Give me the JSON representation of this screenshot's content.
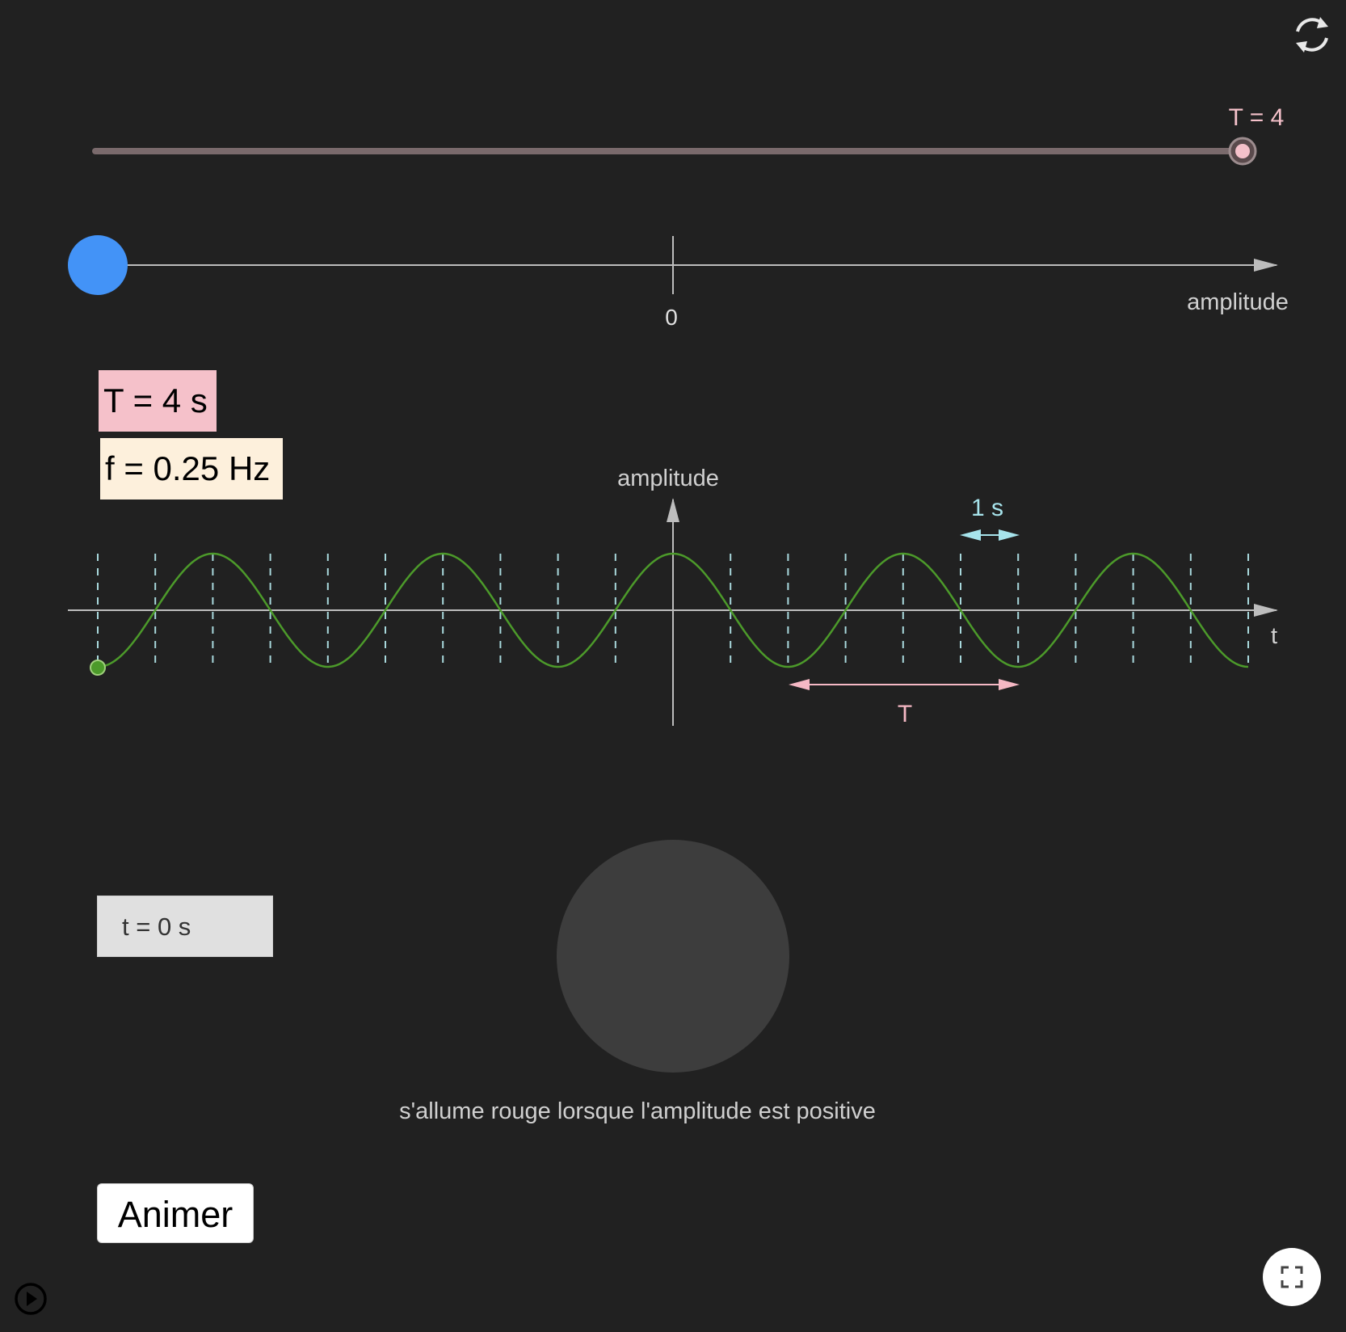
{
  "period_slider": {
    "label": "T = 4",
    "value": 4,
    "position_fraction": 1.0
  },
  "amplitude_axis": {
    "zero_label": "0",
    "axis_label": "amplitude"
  },
  "info": {
    "period_text": "T = 4 s",
    "frequency_text": "f = 0.25 Hz"
  },
  "graph": {
    "y_axis_label": "amplitude",
    "x_axis_label": "t",
    "one_second_label": "1 s",
    "period_label": "T"
  },
  "time_display": "t = 0 s",
  "lamp_caption": "s'allume rouge lorsque l'amplitude est positive",
  "animate_button": "Animer",
  "colors": {
    "background": "#212121",
    "slider_track": "#7a6a6c",
    "slider_label": "#f5c1ca",
    "blue_point": "#4393f7",
    "curve": "#4c9a2a",
    "dashed": "#a8d8dc",
    "period_arrow": "#f5b8c4",
    "one_second_arrow": "#a7e4ec",
    "lamp_off": "#3d3d3d"
  },
  "icons": {
    "reset": "reset-icon",
    "fullscreen": "fullscreen-icon",
    "play": "play-circle-icon"
  }
}
